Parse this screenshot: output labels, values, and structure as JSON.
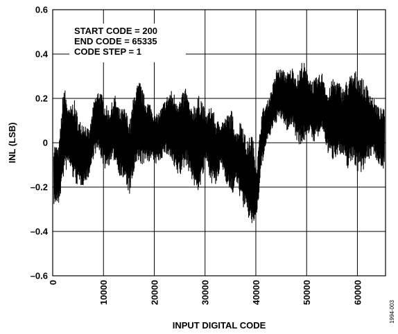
{
  "chart_data": {
    "type": "line",
    "title": "",
    "xlabel": "INPUT DIGITAL CODE",
    "ylabel": "INL (LSB)",
    "xlim": [
      0,
      65535
    ],
    "ylim": [
      -0.6,
      0.6
    ],
    "x_ticks": [
      0,
      10000,
      20000,
      30000,
      40000,
      50000,
      60000
    ],
    "y_ticks": [
      0.6,
      0.4,
      0.2,
      0,
      -0.2,
      -0.4,
      -0.6
    ],
    "y_tick_labels": [
      "0.6",
      "0.4",
      "0.2",
      "0",
      "–0.2",
      "–0.4",
      "–0.6"
    ],
    "grid": true,
    "annotation": [
      "START CODE = 200",
      "END CODE = 65335",
      "CODE STEP = 1"
    ],
    "figure_id": "1994-003",
    "line_color": "#000000",
    "series": [
      {
        "x": [
          200,
          1200,
          2200,
          3200,
          4200,
          5200,
          6200,
          7200,
          8200,
          9200,
          10200,
          11200,
          12200,
          13200,
          14200,
          15200,
          16200,
          17200,
          18200,
          19200,
          20200,
          21200,
          22200,
          23200,
          24200,
          25200,
          26200,
          27200,
          28200,
          29200,
          30200,
          31200,
          32200,
          33200,
          34200,
          35200,
          36200,
          37200,
          38200,
          39200,
          40200,
          41200,
          42200,
          43200,
          44200,
          45200,
          46200,
          47200,
          48200,
          49200,
          50200,
          51200,
          52200,
          53200,
          54200,
          55200,
          56200,
          57200,
          58200,
          59200,
          60200,
          61200,
          62200,
          63200,
          64200,
          65335
        ],
        "y_max": [
          0.0,
          -0.02,
          0.27,
          0.15,
          0.2,
          0.1,
          0.1,
          0.05,
          0.2,
          0.25,
          0.18,
          0.15,
          0.22,
          0.15,
          0.16,
          0.1,
          0.25,
          0.28,
          0.2,
          0.18,
          0.12,
          0.15,
          0.2,
          0.24,
          0.22,
          0.2,
          0.26,
          0.15,
          0.2,
          0.22,
          0.12,
          0.18,
          0.1,
          0.1,
          0.12,
          0.15,
          0.05,
          0.12,
          0.0,
          0.05,
          -0.1,
          0.15,
          0.18,
          0.25,
          0.34,
          0.33,
          0.32,
          0.34,
          0.3,
          0.38,
          0.32,
          0.28,
          0.3,
          0.32,
          0.22,
          0.3,
          0.28,
          0.25,
          0.3,
          0.32,
          0.33,
          0.28,
          0.25,
          0.2,
          0.16,
          0.15
        ],
        "y_min": [
          -0.28,
          -0.28,
          -0.15,
          -0.1,
          -0.18,
          -0.2,
          -0.19,
          -0.15,
          -0.05,
          -0.05,
          -0.12,
          -0.1,
          -0.08,
          -0.15,
          -0.18,
          -0.24,
          -0.12,
          -0.1,
          -0.1,
          -0.08,
          -0.1,
          -0.08,
          -0.05,
          -0.08,
          -0.15,
          -0.15,
          -0.1,
          -0.15,
          -0.23,
          -0.2,
          -0.08,
          -0.18,
          -0.2,
          -0.1,
          -0.18,
          -0.25,
          -0.18,
          -0.28,
          -0.32,
          -0.38,
          -0.34,
          -0.1,
          0.0,
          0.05,
          0.1,
          0.1,
          0.05,
          0.08,
          0.0,
          -0.02,
          0.05,
          0.0,
          0.02,
          0.05,
          -0.05,
          -0.08,
          -0.05,
          -0.08,
          -0.12,
          -0.08,
          -0.15,
          -0.12,
          -0.08,
          -0.05,
          -0.1,
          -0.12
        ]
      }
    ]
  }
}
